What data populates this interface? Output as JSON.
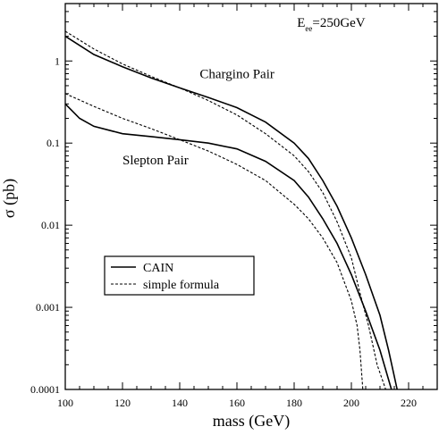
{
  "chart_data": {
    "type": "line",
    "xlabel": "mass (GeV)",
    "ylabel": "σ (pb)",
    "xlim": [
      100,
      230
    ],
    "ylim": [
      0.0001,
      5
    ],
    "yscale": "log",
    "xticks": [
      100,
      120,
      140,
      160,
      180,
      200,
      220
    ],
    "xtick_labels": [
      "100",
      "120",
      "140",
      "160",
      "180",
      "200",
      "220"
    ],
    "yticks": [
      0.0001,
      0.001,
      0.01,
      0.1,
      1
    ],
    "ytick_labels": [
      "0.0001",
      "0.001",
      "0.01",
      "0.1",
      "1"
    ],
    "grid": false,
    "annotations": [
      {
        "text": "E",
        "sub": "ee",
        "rest": "=250GeV",
        "x": 181,
        "y": 2.6
      },
      {
        "text": "Chargino Pair",
        "x": 147,
        "y": 0.62
      },
      {
        "text": "Slepton Pair",
        "x": 120,
        "y": 0.055
      }
    ],
    "legend": {
      "placement": "lower-left",
      "entries": [
        {
          "label": "CAIN",
          "style": "solid"
        },
        {
          "label": "simple formula",
          "style": "dashed"
        }
      ]
    },
    "series": [
      {
        "label": "Chargino Pair",
        "style": "solid",
        "points": [
          [
            100,
            2.0
          ],
          [
            110,
            1.2
          ],
          [
            120,
            0.85
          ],
          [
            130,
            0.62
          ],
          [
            140,
            0.47
          ],
          [
            150,
            0.36
          ],
          [
            160,
            0.27
          ],
          [
            170,
            0.18
          ],
          [
            180,
            0.1
          ],
          [
            185,
            0.065
          ],
          [
            190,
            0.035
          ],
          [
            195,
            0.017
          ],
          [
            200,
            0.007
          ],
          [
            205,
            0.0025
          ],
          [
            210,
            0.0008
          ],
          [
            213,
            0.0003
          ],
          [
            216,
            0.0001
          ]
        ]
      },
      {
        "label": "Chargino Pair",
        "style": "dashed",
        "points": [
          [
            100,
            2.3
          ],
          [
            110,
            1.4
          ],
          [
            120,
            0.92
          ],
          [
            130,
            0.65
          ],
          [
            140,
            0.47
          ],
          [
            150,
            0.33
          ],
          [
            160,
            0.22
          ],
          [
            170,
            0.13
          ],
          [
            180,
            0.07
          ],
          [
            185,
            0.045
          ],
          [
            190,
            0.025
          ],
          [
            195,
            0.011
          ],
          [
            200,
            0.004
          ],
          [
            203,
            0.0015
          ],
          [
            206,
            0.0006
          ],
          [
            209,
            0.0002
          ],
          [
            212,
            0.0001
          ]
        ]
      },
      {
        "label": "Slepton Pair",
        "style": "solid",
        "points": [
          [
            100,
            0.3
          ],
          [
            105,
            0.2
          ],
          [
            110,
            0.16
          ],
          [
            120,
            0.13
          ],
          [
            130,
            0.12
          ],
          [
            140,
            0.11
          ],
          [
            150,
            0.1
          ],
          [
            160,
            0.085
          ],
          [
            170,
            0.06
          ],
          [
            180,
            0.035
          ],
          [
            185,
            0.022
          ],
          [
            190,
            0.012
          ],
          [
            195,
            0.006
          ],
          [
            200,
            0.0025
          ],
          [
            205,
            0.0009
          ],
          [
            210,
            0.0003
          ],
          [
            214,
            0.0001
          ]
        ]
      },
      {
        "label": "Slepton Pair",
        "style": "dashed",
        "points": [
          [
            100,
            0.4
          ],
          [
            110,
            0.28
          ],
          [
            120,
            0.2
          ],
          [
            130,
            0.15
          ],
          [
            140,
            0.11
          ],
          [
            150,
            0.08
          ],
          [
            160,
            0.055
          ],
          [
            170,
            0.035
          ],
          [
            180,
            0.018
          ],
          [
            185,
            0.012
          ],
          [
            190,
            0.007
          ],
          [
            195,
            0.0035
          ],
          [
            200,
            0.0012
          ],
          [
            202,
            0.0006
          ],
          [
            203,
            0.0003
          ],
          [
            204,
            0.0001
          ]
        ]
      }
    ]
  }
}
